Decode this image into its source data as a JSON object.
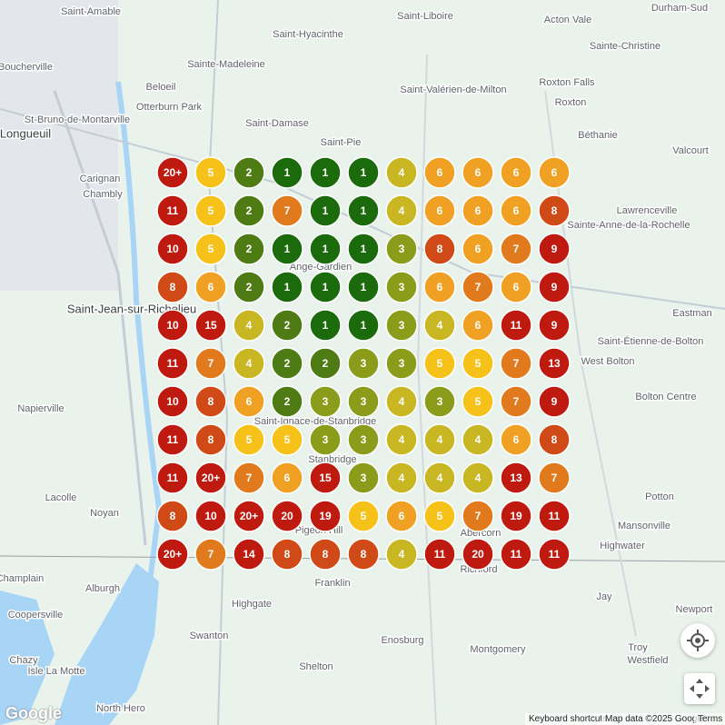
{
  "places": [
    "Saint-Amable",
    "Saint-Liboire",
    "Acton Vale",
    "Durham-Sud",
    "Saint-Hyacinthe",
    "Sainte-Christine",
    "Boucherville",
    "Sainte-Madeleine",
    "Beloeil",
    "Roxton Falls",
    "Saint-Valérien-de-Milton",
    "Otterburn Park",
    "Roxton",
    "St-Bruno-de-Montarville",
    "Saint-Damase",
    "Longueuil",
    "Béthanie",
    "Saint-Pie",
    "Valcourt",
    "Carignan",
    "Chambly",
    "Lawrenceville",
    "Sainte-Anne-de-la-Rochelle",
    "Ange-Gardien",
    "Saint-Jean-sur-Richelieu",
    "Eastman",
    "Saint-Étienne-de-Bolton",
    "West Bolton",
    "Bolton Centre",
    "Napierville",
    "Saint-Ignace-de-Stanbridge",
    "Stanbridge",
    "Lacolle",
    "Noyan",
    "Potton",
    "Pigeon Hill",
    "Mansonville",
    "Abercorn",
    "Highwater",
    "Richford",
    "Champlain",
    "Franklin",
    "Alburgh",
    "Highgate",
    "Jay",
    "Newport",
    "Coopersville",
    "Swanton",
    "Enosburg",
    "Montgomery",
    "Troy",
    "Westfield",
    "Chazy",
    "Isle La Motte",
    "Shelton",
    "North Hero"
  ],
  "grid": [
    [
      "20+",
      5,
      2,
      1,
      1,
      1,
      4,
      6,
      6,
      6,
      6
    ],
    [
      11,
      5,
      2,
      7,
      1,
      1,
      4,
      6,
      6,
      6,
      8
    ],
    [
      10,
      5,
      2,
      1,
      1,
      1,
      3,
      8,
      6,
      7,
      9
    ],
    [
      8,
      6,
      2,
      1,
      1,
      1,
      3,
      6,
      7,
      6,
      9
    ],
    [
      10,
      15,
      4,
      2,
      1,
      1,
      3,
      4,
      6,
      11,
      9
    ],
    [
      11,
      7,
      4,
      2,
      2,
      3,
      3,
      5,
      5,
      7,
      13
    ],
    [
      10,
      8,
      6,
      2,
      3,
      3,
      4,
      3,
      5,
      7,
      9
    ],
    [
      11,
      8,
      5,
      5,
      3,
      3,
      4,
      4,
      4,
      6,
      8
    ],
    [
      11,
      "20+",
      7,
      6,
      15,
      3,
      4,
      4,
      4,
      13,
      7
    ],
    [
      8,
      10,
      "20+",
      20,
      19,
      5,
      6,
      5,
      7,
      19,
      11
    ],
    [
      "20+",
      7,
      14,
      8,
      8,
      8,
      4,
      11,
      20,
      11,
      11
    ]
  ],
  "footer": {
    "logo": "Google",
    "shortcuts": "Keyboard shortcuts",
    "map_data": "Map data ©2025 Google",
    "terms": "Terms"
  }
}
